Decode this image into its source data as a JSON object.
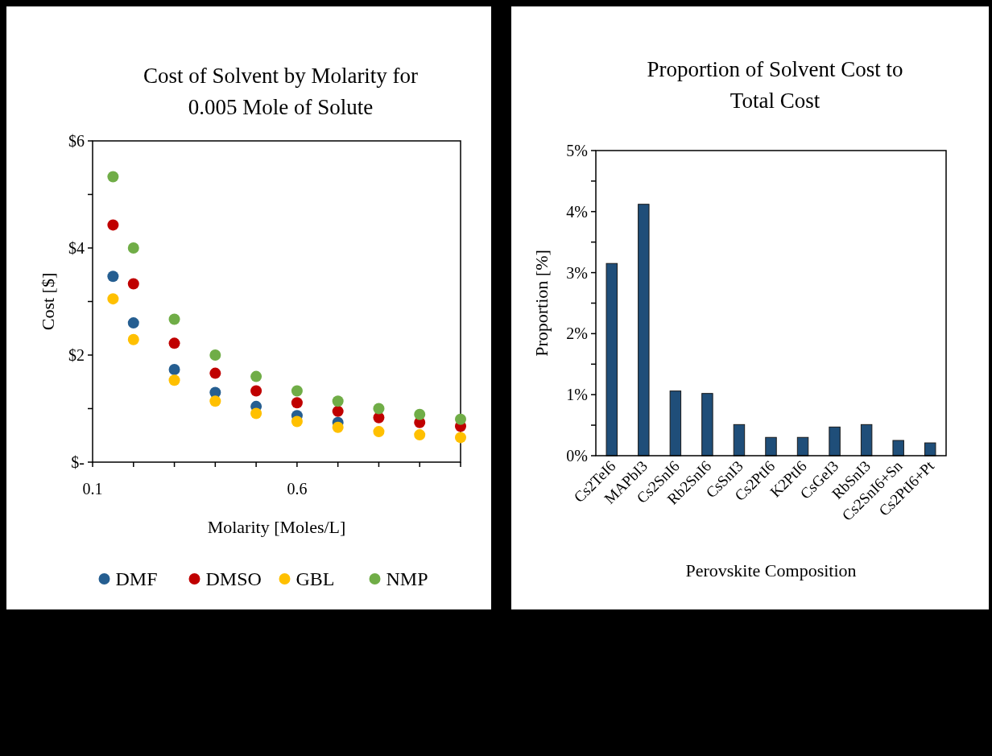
{
  "chart_data": [
    {
      "type": "scatter",
      "title": "Cost of Solvent by Molarity for\n0.005 Mole of Solute",
      "xlabel": "Molarity [Moles/L]",
      "ylabel": "Cost [$]",
      "x": [
        0.15,
        0.2,
        0.3,
        0.4,
        0.5,
        0.6,
        0.7,
        0.8,
        0.9,
        1.0
      ],
      "series": [
        {
          "name": "DMF",
          "color": "#255e91",
          "values": [
            3.47,
            2.6,
            1.73,
            1.3,
            1.04,
            0.87,
            0.74,
            null,
            null,
            null
          ]
        },
        {
          "name": "DMSO",
          "color": "#c00000",
          "values": [
            4.43,
            3.33,
            2.22,
            1.66,
            1.33,
            1.11,
            0.95,
            0.83,
            0.74,
            0.67
          ]
        },
        {
          "name": "GBL",
          "color": "#ffc000",
          "values": [
            3.05,
            2.29,
            1.53,
            1.14,
            0.91,
            0.76,
            0.65,
            0.57,
            0.51,
            0.46
          ]
        },
        {
          "name": "NMP",
          "color": "#70ad47",
          "values": [
            5.33,
            4.0,
            2.67,
            2.0,
            1.6,
            1.33,
            1.14,
            1.0,
            0.89,
            0.8
          ]
        }
      ],
      "xlim": [
        0.1,
        1.0
      ],
      "xticks": [
        0.1,
        {
          "value": 0.2,
          "label": null
        },
        {
          "value": 0.3,
          "label": null
        },
        {
          "value": 0.4,
          "label": null
        },
        {
          "value": 0.5,
          "label": null
        },
        0.6,
        {
          "value": 0.7,
          "label": null
        },
        {
          "value": 0.8,
          "label": null
        },
        {
          "value": 0.9,
          "label": null
        },
        {
          "value": 1.0,
          "label": null
        }
      ],
      "ylim": [
        0,
        6
      ],
      "yticks": [
        {
          "value": 0,
          "label": "$-"
        },
        {
          "value": 1,
          "label": null
        },
        {
          "value": 2,
          "label": "$2"
        },
        {
          "value": 3,
          "label": null
        },
        {
          "value": 4,
          "label": "$4"
        },
        {
          "value": 5,
          "label": null
        },
        {
          "value": 6,
          "label": "$6"
        }
      ],
      "marker": "circle",
      "legend": "bottom",
      "grid": false
    },
    {
      "type": "bar",
      "title": "Proportion of Solvent Cost to\nTotal Cost",
      "xlabel": "Perovskite Composition",
      "ylabel": "Proportion [%]",
      "categories": [
        "Cs2TeI6",
        "MAPbI3",
        "Cs2SnI6",
        "Rb2SnI6",
        "CsSnI3",
        "Cs2PtI6",
        "K2PtI6",
        "CsGeI3",
        "RbSnI3",
        "Cs2SnI6+Sn",
        "Cs2PtI6+Pt"
      ],
      "values": [
        3.15,
        4.12,
        1.06,
        1.02,
        0.51,
        0.3,
        0.3,
        0.47,
        0.51,
        0.25,
        0.21
      ],
      "color": "#1f4e79",
      "ylim": [
        0,
        5
      ],
      "yticks": [
        {
          "value": 0,
          "label": "0%"
        },
        {
          "value": 0.5,
          "label": null
        },
        {
          "value": 1,
          "label": "1%"
        },
        {
          "value": 1.5,
          "label": null
        },
        {
          "value": 2,
          "label": "2%"
        },
        {
          "value": 2.5,
          "label": null
        },
        {
          "value": 3,
          "label": "3%"
        },
        {
          "value": 3.5,
          "label": null
        },
        {
          "value": 4,
          "label": "4%"
        },
        {
          "value": 4.5,
          "label": null
        },
        {
          "value": 5,
          "label": "5%"
        }
      ],
      "legend": false,
      "grid": false
    }
  ]
}
